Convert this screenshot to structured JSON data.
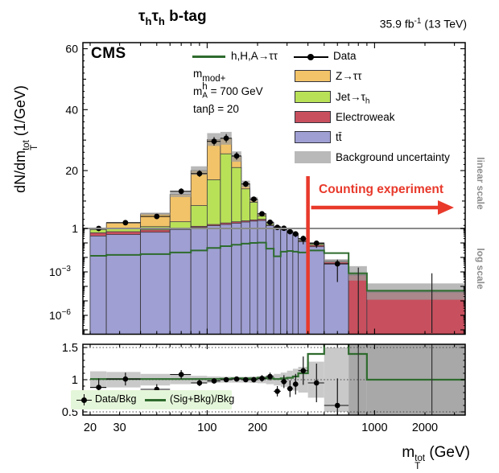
{
  "header": {
    "channel": {
      "tau1": "τ",
      "sub1": "h",
      "tau2": "τ",
      "sub2": "h",
      "tag": " b-tag"
    },
    "lumi": {
      "val": "35.9 fb",
      "sup": "-1",
      "rest": " (13 TeV)"
    }
  },
  "cms_label": "CMS",
  "params": {
    "mh": {
      "base": "m",
      "sup": "mod+",
      "sub": "h"
    },
    "ma": {
      "base": "m",
      "sub": "A",
      "val": " = 700 GeV"
    },
    "tanb": "tanβ = 20"
  },
  "legend": {
    "signal": "h,H,A→ττ",
    "data": "Data",
    "z": "Z→ττ",
    "jet": {
      "base": "Jet→τ",
      "sub": "h"
    },
    "ewk": "Electroweak",
    "tt": "tt̄",
    "unc": "Background uncertainty"
  },
  "scale_labels": {
    "linear": "linear scale",
    "log": "log scale"
  },
  "annotation": {
    "text": "Counting experiment"
  },
  "ratio_legend": {
    "data": "Data/Bkg",
    "sig": "(Sig+Bkg)/Bkg"
  },
  "axis": {
    "y_title": {
      "base": "dN/dm",
      "sup": "tot",
      "sub": "T",
      "units": " (1/GeV)"
    },
    "x_title": {
      "base": "m",
      "sup": "tot",
      "sub": "T",
      "units": " (GeV)"
    }
  },
  "colors": {
    "z": "#f2c368",
    "jet": "#b9e158",
    "ewk": "#c8505e",
    "tt": "#9f9fd3",
    "unc": "#9e9e9e",
    "unc_legend": "#b9b9b9",
    "signal": "#2e6b2e",
    "red": "#e8392b",
    "ratio_leg_bg": "#e4f6d9",
    "divider": "#8a8a8a"
  },
  "chart_data": {
    "type": "stacked-histogram-with-ratio",
    "title": "τhτh b-tag",
    "xlabel": "mT_tot (GeV)",
    "ylabel": "dN/dmT_tot (1/GeV)",
    "x_scale": "log",
    "x_range": [
      18.1,
      3520
    ],
    "y_main": {
      "scale": "linear-above-1-log-below",
      "linear_top": 62,
      "divider": 1,
      "log_min_exp": -7.3
    },
    "y_ratio_range": [
      0.45,
      1.55
    ],
    "x_tick_labels": [
      [
        20,
        "20"
      ],
      [
        30,
        "30"
      ],
      [
        100,
        "100"
      ],
      [
        200,
        "200"
      ],
      [
        1000,
        "1000"
      ],
      [
        2000,
        "2000"
      ]
    ],
    "y_tick_labels_linear": [
      [
        60,
        "60"
      ],
      [
        40,
        "40"
      ],
      [
        20,
        "20"
      ],
      [
        1,
        "1"
      ]
    ],
    "y_tick_labels_log": [
      [
        0.001,
        "10",
        "−3"
      ],
      [
        1e-06,
        "10",
        "−6"
      ]
    ],
    "ratio_tick_labels": [
      [
        1.5,
        "1.5"
      ],
      [
        1,
        "1"
      ],
      [
        0.5,
        "0.5"
      ]
    ],
    "counting_threshold": 400,
    "bin_edges": [
      20,
      25,
      40,
      60,
      80,
      100,
      120,
      140,
      160,
      180,
      200,
      225,
      250,
      275,
      300,
      325,
      350,
      400,
      500,
      700,
      900,
      3500
    ],
    "stack_tops": {
      "tt": [
        0.3,
        0.38,
        0.55,
        0.85,
        1.35,
        1.9,
        2.3,
        2.7,
        3.1,
        3.4,
        3.6,
        1.9,
        1.15,
        0.8,
        0.5,
        0.33,
        0.12,
        0.055,
        0.0035,
        1e-09,
        1e-09
      ],
      "ewk": [
        0.5,
        0.6,
        0.8,
        1.1,
        1.7,
        2.3,
        2.8,
        3.2,
        3.5,
        3.8,
        4.0,
        2.1,
        1.25,
        0.88,
        0.56,
        0.37,
        0.135,
        0.07,
        0.0048,
        0.0006,
        4e-05
      ],
      "jet": [
        0.85,
        1.05,
        1.6,
        3.2,
        8.5,
        17.0,
        25.5,
        21.0,
        14.0,
        9.6,
        5.1,
        2.6,
        1.5,
        1.0,
        0.63,
        0.41,
        0.155,
        0.085,
        0.0053,
        0.00065,
        4.2e-05
      ],
      "z": [
        1.15,
        2.85,
        5.8,
        12.2,
        20.0,
        30.2,
        30.6,
        24.6,
        15.6,
        10.6,
        5.7,
        2.9,
        1.65,
        1.1,
        0.7,
        0.45,
        0.175,
        0.1,
        0.006,
        0.0008,
        4.5e-05
      ]
    },
    "unc_band": {
      "lo": [
        1.02,
        2.65,
        5.4,
        11.3,
        18.6,
        28.1,
        28.5,
        22.9,
        14.5,
        9.85,
        5.3,
        2.7,
        1.53,
        1.02,
        0.65,
        0.41,
        0.16,
        0.085,
        0.0045,
        0.00025,
        1.2e-05
      ],
      "hi": [
        1.28,
        3.05,
        6.2,
        13.1,
        21.4,
        32.3,
        32.7,
        26.3,
        16.7,
        11.35,
        6.1,
        3.1,
        1.77,
        1.18,
        0.75,
        0.49,
        0.19,
        0.115,
        0.0075,
        0.0025,
        0.00016
      ]
    },
    "signal": [
      0.013,
      0.015,
      0.017,
      0.022,
      0.03,
      0.045,
      0.06,
      0.075,
      0.09,
      0.1,
      0.105,
      0.04,
      0.012,
      0.025,
      0.028,
      0.025,
      0.022,
      0.03,
      0.02,
      0.0008,
      5e-05
    ],
    "data_points": {
      "y": [
        1.0,
        2.9,
        4.95,
        13.2,
        19.0,
        29.6,
        30.6,
        24.8,
        15.6,
        10.6,
        5.8,
        3.05,
        1.35,
        1.07,
        0.6,
        0.42,
        0.2,
        0.095,
        0.0036,
        null,
        null
      ],
      "yerr": [
        0.35,
        0.5,
        0.6,
        0.95,
        1.1,
        1.4,
        1.4,
        1.25,
        1.0,
        0.85,
        0.6,
        0.45,
        0.3,
        0.27,
        0.2,
        0.17,
        0.12,
        0.05,
        0.0034,
        null,
        null
      ],
      "bars_only": [
        {
          "bin": 19,
          "lo": 6e-08,
          "hi": 0.002
        },
        {
          "bin": 20,
          "lo": 6e-08,
          "hi": 0.0008
        }
      ]
    },
    "ratio": {
      "points": [
        0.88,
        1.01,
        0.85,
        1.08,
        0.95,
        0.98,
        1.0,
        1.01,
        1.0,
        1.0,
        1.02,
        1.05,
        0.82,
        0.97,
        0.86,
        0.93,
        1.14,
        0.95,
        0.6,
        null,
        null
      ],
      "err": [
        0.14,
        0.1,
        0.08,
        0.07,
        0.05,
        0.04,
        0.035,
        0.035,
        0.035,
        0.04,
        0.05,
        0.06,
        0.08,
        0.1,
        0.13,
        0.16,
        0.22,
        0.3,
        0.42,
        null,
        null
      ],
      "band_half": [
        0.13,
        0.12,
        0.09,
        0.07,
        0.06,
        0.05,
        0.045,
        0.045,
        0.045,
        0.05,
        0.055,
        0.07,
        0.09,
        0.11,
        0.14,
        0.17,
        0.2,
        0.28,
        0.5,
        1.2,
        1.2
      ],
      "sigline": [
        1.01,
        1.01,
        1.01,
        1.01,
        1.01,
        1.01,
        1.015,
        1.02,
        1.02,
        1.02,
        1.03,
        1.02,
        1.01,
        1.02,
        1.03,
        1.05,
        1.1,
        1.4,
        1.7,
        1.4,
        1.0
      ],
      "bars_only_bins": [
        19,
        20
      ]
    }
  }
}
